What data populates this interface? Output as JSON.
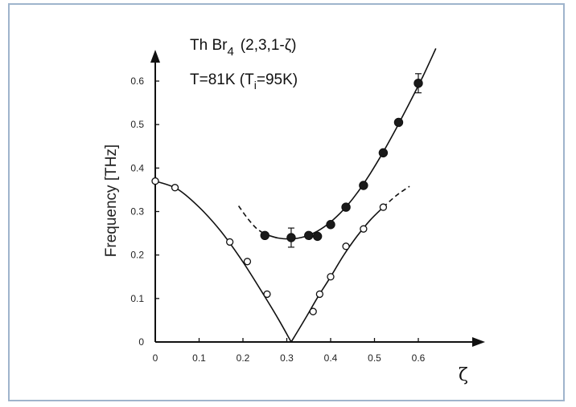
{
  "chart_data": {
    "type": "scatter",
    "title_line1": "Th Br",
    "title_sub1": "4",
    "title_wavevector": "(2,3,1-ζ)",
    "title_line2_a": "T=81K (T",
    "title_sub2": "i",
    "title_line2_b": "=95K)",
    "xlabel": "ζ",
    "ylabel": "Frequency [THz]",
    "xlim": [
      0,
      0.65
    ],
    "ylim": [
      0,
      0.66
    ],
    "x_ticks": [
      0,
      0.1,
      0.2,
      0.3,
      0.4,
      0.5,
      0.6
    ],
    "x_tick_labels": [
      "0",
      "0.1",
      "0.2",
      "0.3",
      "0.4",
      "0.5",
      "0.6"
    ],
    "y_ticks": [
      0,
      0.1,
      0.2,
      0.3,
      0.4,
      0.5,
      0.6
    ],
    "y_tick_labels": [
      "0",
      "0.1",
      "0.2",
      "0.3",
      "0.4",
      "0.5",
      "0.6"
    ],
    "grid": false,
    "series": [
      {
        "marker": "open-circle",
        "x": [
          0,
          0.045,
          0.17,
          0.21,
          0.255,
          0.36,
          0.375,
          0.4,
          0.435,
          0.475,
          0.52
        ],
        "y": [
          0.37,
          0.355,
          0.23,
          0.185,
          0.11,
          0.07,
          0.11,
          0.15,
          0.22,
          0.26,
          0.31
        ]
      },
      {
        "marker": "filled-circle",
        "x": [
          0.25,
          0.31,
          0.35,
          0.37,
          0.4,
          0.435,
          0.475,
          0.52,
          0.555,
          0.6
        ],
        "y": [
          0.245,
          0.24,
          0.245,
          0.243,
          0.27,
          0.31,
          0.36,
          0.435,
          0.505,
          0.595
        ],
        "error_bars": [
          {
            "x": 0.31,
            "y": 0.24,
            "err": 0.022
          },
          {
            "x": 0.6,
            "y": 0.595,
            "err": 0.022
          }
        ]
      }
    ],
    "curves": [
      {
        "style": "solid",
        "x": [
          0,
          0.05,
          0.1,
          0.15,
          0.2,
          0.25,
          0.28,
          0.31
        ],
        "y": [
          0.37,
          0.352,
          0.31,
          0.254,
          0.184,
          0.104,
          0.054,
          0
        ]
      },
      {
        "style": "solid",
        "x": [
          0.31,
          0.34,
          0.37,
          0.4,
          0.43,
          0.46,
          0.49,
          0.52
        ],
        "y": [
          0,
          0.05,
          0.102,
          0.15,
          0.2,
          0.243,
          0.28,
          0.31
        ]
      },
      {
        "style": "dashed",
        "x": [
          0.52,
          0.55,
          0.58
        ],
        "y": [
          0.31,
          0.337,
          0.358
        ]
      },
      {
        "style": "dashed",
        "x": [
          0.19,
          0.21,
          0.23,
          0.25
        ],
        "y": [
          0.313,
          0.285,
          0.262,
          0.248
        ]
      },
      {
        "style": "solid",
        "x": [
          0.25,
          0.28,
          0.31,
          0.34,
          0.37,
          0.4,
          0.43,
          0.46,
          0.49,
          0.52,
          0.55,
          0.58,
          0.61,
          0.64
        ],
        "y": [
          0.248,
          0.239,
          0.237,
          0.242,
          0.255,
          0.276,
          0.305,
          0.342,
          0.387,
          0.437,
          0.492,
          0.55,
          0.61,
          0.675
        ]
      }
    ]
  }
}
